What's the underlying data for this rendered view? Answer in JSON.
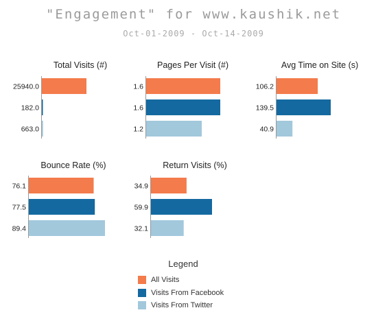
{
  "header": {
    "title": "\"Engagement\" for www.kaushik.net",
    "subtitle": "Oct-01-2009 - Oct-14-2009"
  },
  "colors": {
    "all_visits": "#F47B4B",
    "facebook": "#1469A0",
    "twitter": "#A2C8DC",
    "axis": "#999999"
  },
  "legend": {
    "title": "Legend",
    "items": [
      {
        "label": "All Visits",
        "color": "#F47B4B"
      },
      {
        "label": "Visits From Facebook",
        "color": "#1469A0"
      },
      {
        "label": "Visits From Twitter",
        "color": "#A2C8DC"
      }
    ]
  },
  "chart_data": [
    {
      "type": "bar",
      "orientation": "horizontal",
      "title": "Total Visits (#)",
      "categories": [
        "All Visits",
        "Visits From Facebook",
        "Visits From Twitter"
      ],
      "values": [
        25940.0,
        182.0,
        663.0
      ],
      "value_labels": [
        "25940.0",
        "182.0",
        "663.0"
      ]
    },
    {
      "type": "bar",
      "orientation": "horizontal",
      "title": "Pages Per Visit (#)",
      "categories": [
        "All Visits",
        "Visits From Facebook",
        "Visits From Twitter"
      ],
      "values": [
        1.6,
        1.6,
        1.2
      ],
      "value_labels": [
        "1.6",
        "1.6",
        "1.2"
      ]
    },
    {
      "type": "bar",
      "orientation": "horizontal",
      "title": "Avg Time on Site (s)",
      "categories": [
        "All Visits",
        "Visits From Facebook",
        "Visits From Twitter"
      ],
      "values": [
        106.2,
        139.5,
        40.9
      ],
      "value_labels": [
        "106.2",
        "139.5",
        "40.9"
      ]
    },
    {
      "type": "bar",
      "orientation": "horizontal",
      "title": "Bounce Rate (%)",
      "categories": [
        "All Visits",
        "Visits From Facebook",
        "Visits From Twitter"
      ],
      "values": [
        76.1,
        77.5,
        89.4
      ],
      "value_labels": [
        "76.1",
        "77.5",
        "89.4"
      ]
    },
    {
      "type": "bar",
      "orientation": "horizontal",
      "title": "Return Visits (%)",
      "categories": [
        "All Visits",
        "Visits From Facebook",
        "Visits From Twitter"
      ],
      "values": [
        34.9,
        59.9,
        32.1
      ],
      "value_labels": [
        "34.9",
        "59.9",
        "32.1"
      ]
    }
  ]
}
